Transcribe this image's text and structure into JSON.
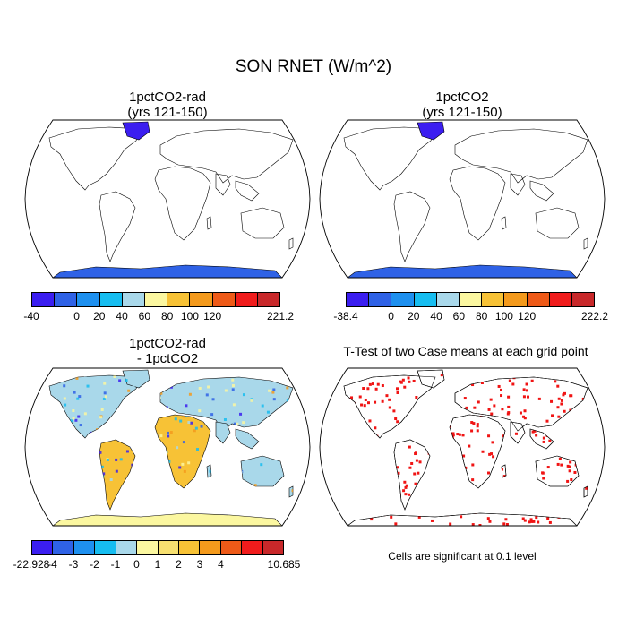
{
  "title": "SON RNET (W/m^2)",
  "panels": [
    {
      "title_line1": "1pctCO2-rad",
      "title_line2": "(yrs 121-150)"
    },
    {
      "title_line1": "1pctCO2",
      "title_line2": "(yrs 121-150)"
    },
    {
      "title_line1": "1pctCO2-rad",
      "title_line2": "- 1pctCO2"
    },
    {
      "title_line1": "T-Test of two Case means at each grid point",
      "title_line2": ""
    }
  ],
  "colorbars": [
    {
      "colors": [
        "#3b1ef0",
        "#2f62e6",
        "#1e90ef",
        "#16bdf0",
        "#a9d8ea",
        "#fbf7a0",
        "#f7c236",
        "#f49a1c",
        "#ee5a18",
        "#f01c1c",
        "#c8282a"
      ],
      "labels": [
        "-40",
        "",
        "0",
        "20",
        "40",
        "60",
        "80",
        "100",
        "120",
        "",
        "221.2"
      ]
    },
    {
      "colors": [
        "#3b1ef0",
        "#2f62e6",
        "#1e90ef",
        "#16bdf0",
        "#a9d8ea",
        "#fbf7a0",
        "#f7c236",
        "#f49a1c",
        "#ee5a18",
        "#f01c1c",
        "#c8282a"
      ],
      "labels": [
        "-38.4",
        "",
        "0",
        "20",
        "40",
        "60",
        "80",
        "100",
        "120",
        "",
        "222.2"
      ]
    },
    {
      "colors": [
        "#3b1ef0",
        "#2f62e6",
        "#1e90ef",
        "#16bdf0",
        "#a9d8ea",
        "#fbf7a0",
        "#f7e070",
        "#f7c236",
        "#f49a1c",
        "#ee5a18",
        "#f01c1c",
        "#c8282a"
      ],
      "labels": [
        "-22.928",
        "-4",
        "-3",
        "-2",
        "-1",
        "0",
        "1",
        "2",
        "3",
        "4",
        "",
        "10.685"
      ]
    }
  ],
  "significance_note": "Cells are significant at 0.1 level",
  "colors": {
    "sig": "#f01414",
    "ocean": "#ffffff",
    "outline": "#000000"
  }
}
